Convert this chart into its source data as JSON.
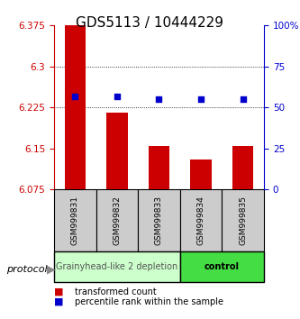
{
  "title": "GDS5113 / 10444229",
  "samples": [
    "GSM999831",
    "GSM999832",
    "GSM999833",
    "GSM999834",
    "GSM999835"
  ],
  "bar_values": [
    6.375,
    6.215,
    6.155,
    6.13,
    6.155
  ],
  "bar_bottom": 6.075,
  "percentile_values": [
    57,
    57,
    55,
    55,
    55
  ],
  "percentile_max": 100,
  "ylim": [
    6.075,
    6.375
  ],
  "y_ticks": [
    6.075,
    6.15,
    6.225,
    6.3,
    6.375
  ],
  "y_tick_labels": [
    "6.075",
    "6.15",
    "6.225",
    "6.3",
    "6.375"
  ],
  "right_yticks": [
    0,
    25,
    50,
    75,
    100
  ],
  "right_ytick_labels": [
    "0",
    "25",
    "50",
    "75",
    "100%"
  ],
  "bar_color": "#cc0000",
  "percentile_color": "#0000cc",
  "group1_label": "Grainyhead-like 2 depletion",
  "group2_label": "control",
  "group1_color": "#ccffcc",
  "group2_color": "#44dd44",
  "group1_samples": [
    0,
    1,
    2
  ],
  "group2_samples": [
    3,
    4
  ],
  "protocol_label": "protocol",
  "xlabel_color": "#cc0000",
  "right_axis_color": "#0000cc",
  "background_color": "#ffffff",
  "grid_color": "#000000",
  "title_fontsize": 11,
  "tick_fontsize": 7.5,
  "sample_fontsize": 6.5,
  "group_fontsize": 7,
  "legend_fontsize": 7
}
